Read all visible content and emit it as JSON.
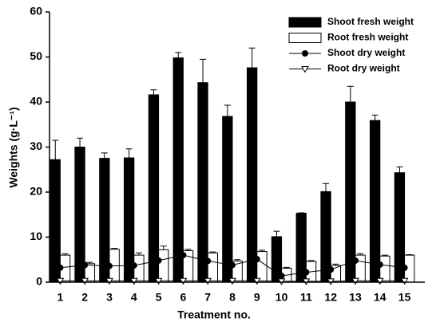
{
  "chart_data": {
    "type": "bar",
    "xlabel": "Treatment no.",
    "ylabel": "Weights (g·L⁻¹)",
    "categories": [
      "1",
      "2",
      "3",
      "4",
      "5",
      "6",
      "7",
      "8",
      "9",
      "10",
      "11",
      "12",
      "13",
      "14",
      "15"
    ],
    "ylim": [
      0,
      60
    ],
    "yticks": [
      0,
      10,
      20,
      30,
      40,
      50,
      60
    ],
    "legend": "upper right",
    "series": [
      {
        "name": "Shoot fresh weight",
        "type": "bar",
        "color": "#000000",
        "values": [
          27.2,
          30,
          27.5,
          27.6,
          41.6,
          49.8,
          44.3,
          36.8,
          47.6,
          10.1,
          15.3,
          20.1,
          40,
          35.9,
          24.3
        ],
        "errors": [
          4.3,
          2,
          1.2,
          2,
          1.1,
          1.2,
          5.2,
          2.5,
          4.4,
          1.2,
          0.1,
          1.8,
          3.5,
          1.2,
          1.3
        ]
      },
      {
        "name": "Root fresh weight",
        "type": "bar",
        "color": "#ffffff",
        "values": [
          6,
          4.1,
          7.3,
          6,
          7.2,
          7,
          6.5,
          4.7,
          6.8,
          3.1,
          4.6,
          3.7,
          6,
          5.8,
          6
        ],
        "errors": [
          0.3,
          0.3,
          0.2,
          0.5,
          0.8,
          0.3,
          0.2,
          0.3,
          0.3,
          0.2,
          0.2,
          0.3,
          0.3,
          0.2,
          0.1
        ]
      },
      {
        "name": "Shoot dry weight",
        "type": "line",
        "marker": "circle",
        "color": "#000000",
        "values": [
          3.2,
          3.8,
          3.6,
          3.7,
          4.8,
          6.0,
          4.7,
          3.8,
          5.1,
          1.4,
          2.2,
          2.8,
          4.8,
          3.9,
          3.2
        ]
      },
      {
        "name": "Root dry weight",
        "type": "line",
        "marker": "triangle",
        "color": "#000000",
        "values": [
          0.3,
          0.3,
          0.3,
          0.3,
          0.3,
          0.3,
          0.3,
          0.3,
          0.3,
          0.2,
          0.2,
          0.2,
          0.3,
          0.3,
          0.3
        ]
      }
    ]
  }
}
